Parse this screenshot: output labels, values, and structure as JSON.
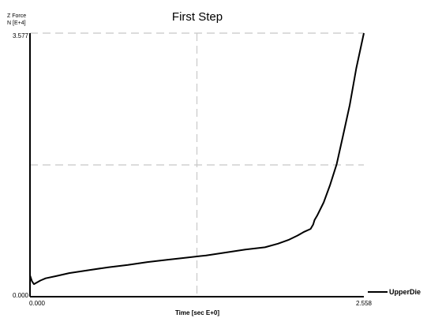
{
  "chart_data": {
    "type": "line",
    "title": "First Step",
    "ylabel_line1": "Z Force",
    "ylabel_line2": "N [E+4]",
    "xlabel": "Time  [sec E+0]",
    "xlim": [
      0,
      2.558
    ],
    "ylim": [
      0,
      3.577
    ],
    "x_tick_labels": [
      "0.000",
      "2.558"
    ],
    "y_tick_labels": [
      "3.577",
      "0.000"
    ],
    "grid": true,
    "grid_style": "dashed",
    "legend_position": "bottom-right",
    "series": [
      {
        "name": "UpperDie",
        "color": "#000000",
        "x": [
          0.0,
          0.015,
          0.03,
          0.05,
          0.08,
          0.12,
          0.2,
          0.3,
          0.45,
          0.6,
          0.75,
          0.9,
          1.05,
          1.2,
          1.35,
          1.5,
          1.65,
          1.8,
          1.9,
          1.98,
          2.05,
          2.1,
          2.15,
          2.17,
          2.18,
          2.2,
          2.25,
          2.3,
          2.35,
          2.4,
          2.45,
          2.5,
          2.558
        ],
        "y": [
          0.29,
          0.21,
          0.17,
          0.19,
          0.22,
          0.25,
          0.28,
          0.32,
          0.36,
          0.4,
          0.43,
          0.47,
          0.5,
          0.53,
          0.56,
          0.6,
          0.64,
          0.67,
          0.72,
          0.77,
          0.83,
          0.88,
          0.92,
          0.98,
          1.04,
          1.1,
          1.28,
          1.52,
          1.8,
          2.2,
          2.6,
          3.1,
          3.577
        ]
      }
    ]
  }
}
